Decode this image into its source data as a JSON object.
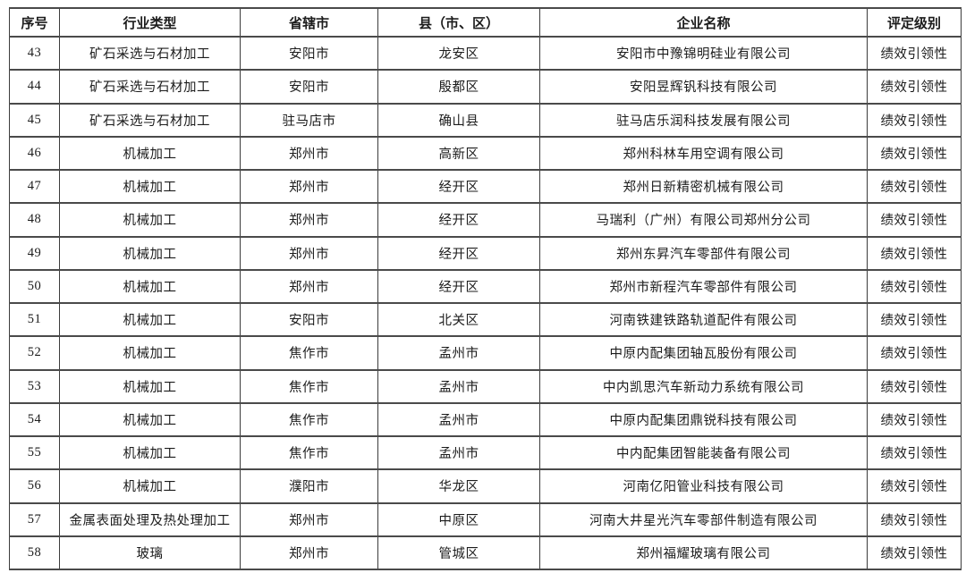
{
  "colors": {
    "background": "#ffffff",
    "border": "#3c3c3c",
    "text": "#1c1c1c"
  },
  "table": {
    "columns": [
      {
        "key": "seq",
        "label": "序号"
      },
      {
        "key": "industry",
        "label": "行业类型"
      },
      {
        "key": "city",
        "label": "省辖市"
      },
      {
        "key": "county",
        "label": "县（市、区）"
      },
      {
        "key": "company",
        "label": "企业名称"
      },
      {
        "key": "rating",
        "label": "评定级别"
      }
    ],
    "rows": [
      [
        "43",
        "矿石采选与石材加工",
        "安阳市",
        "龙安区",
        "安阳市中豫锦明硅业有限公司",
        "绩效引领性"
      ],
      [
        "44",
        "矿石采选与石材加工",
        "安阳市",
        "殷都区",
        "安阳昱辉钒科技有限公司",
        "绩效引领性"
      ],
      [
        "45",
        "矿石采选与石材加工",
        "驻马店市",
        "确山县",
        "驻马店乐润科技发展有限公司",
        "绩效引领性"
      ],
      [
        "46",
        "机械加工",
        "郑州市",
        "高新区",
        "郑州科林车用空调有限公司",
        "绩效引领性"
      ],
      [
        "47",
        "机械加工",
        "郑州市",
        "经开区",
        "郑州日新精密机械有限公司",
        "绩效引领性"
      ],
      [
        "48",
        "机械加工",
        "郑州市",
        "经开区",
        "马瑞利（广州）有限公司郑州分公司",
        "绩效引领性"
      ],
      [
        "49",
        "机械加工",
        "郑州市",
        "经开区",
        "郑州东昇汽车零部件有限公司",
        "绩效引领性"
      ],
      [
        "50",
        "机械加工",
        "郑州市",
        "经开区",
        "郑州市新程汽车零部件有限公司",
        "绩效引领性"
      ],
      [
        "51",
        "机械加工",
        "安阳市",
        "北关区",
        "河南铁建铁路轨道配件有限公司",
        "绩效引领性"
      ],
      [
        "52",
        "机械加工",
        "焦作市",
        "孟州市",
        "中原内配集团轴瓦股份有限公司",
        "绩效引领性"
      ],
      [
        "53",
        "机械加工",
        "焦作市",
        "孟州市",
        "中内凯思汽车新动力系统有限公司",
        "绩效引领性"
      ],
      [
        "54",
        "机械加工",
        "焦作市",
        "孟州市",
        "中原内配集团鼎锐科技有限公司",
        "绩效引领性"
      ],
      [
        "55",
        "机械加工",
        "焦作市",
        "孟州市",
        "中内配集团智能装备有限公司",
        "绩效引领性"
      ],
      [
        "56",
        "机械加工",
        "濮阳市",
        "华龙区",
        "河南亿阳管业科技有限公司",
        "绩效引领性"
      ],
      [
        "57",
        "金属表面处理及热处理加工",
        "郑州市",
        "中原区",
        "河南大井星光汽车零部件制造有限公司",
        "绩效引领性"
      ],
      [
        "58",
        "玻璃",
        "郑州市",
        "管城区",
        "郑州福耀玻璃有限公司",
        "绩效引领性"
      ]
    ]
  }
}
